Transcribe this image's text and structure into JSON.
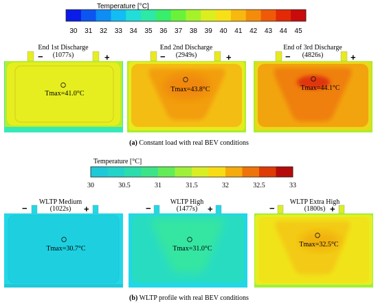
{
  "top": {
    "colorbar": {
      "title": "Temperature [°C]",
      "ticks": [
        "30",
        "31",
        "32",
        "33",
        "34",
        "35",
        "36",
        "37",
        "38",
        "39",
        "40",
        "41",
        "42",
        "43",
        "44",
        "45"
      ],
      "colors": [
        "#0b1be8",
        "#0c55f0",
        "#0e8df2",
        "#13bdf3",
        "#22ddd8",
        "#2ee8a6",
        "#39ee6a",
        "#6af23a",
        "#a5f22b",
        "#dcee20",
        "#f7e017",
        "#f7b80f",
        "#f48c0b",
        "#ef5a08",
        "#e32a06",
        "#c80b0b"
      ]
    },
    "panels": [
      {
        "title_line1": "End 1st Discharge",
        "title_line2": "(1077s)",
        "tmax": "Tmax=41.0°C",
        "minus": "−",
        "plus": "+"
      },
      {
        "title_line1": "End 2nd Discharge",
        "title_line2": "(2949s)",
        "tmax": "Tmax=43.8°C",
        "minus": "−",
        "plus": "+"
      },
      {
        "title_line1": "End of 3rd Discharge",
        "title_line2": "(4826s)",
        "tmax": "Tmax=44.1°C",
        "minus": "−",
        "plus": "+"
      }
    ],
    "caption_label": "(a)",
    "caption_text": " Constant load with real BEV conditions"
  },
  "bottom": {
    "colorbar": {
      "title": "Temperature [°C]",
      "ticks": [
        "30",
        "30.5",
        "31",
        "31.5",
        "32",
        "32.5",
        "33"
      ],
      "colors": [
        "#1fc9d8",
        "#23d2c9",
        "#2cdcac",
        "#3be488",
        "#63ec57",
        "#9ff03b",
        "#d9ee25",
        "#f8dc16",
        "#f5ab0d",
        "#ee7409",
        "#dd3a06",
        "#b60a0a"
      ]
    },
    "panels": [
      {
        "title_line1": "WLTP Medium",
        "title_line2": "(1022s)",
        "tmax": "Tmax=30.7°C",
        "minus": "−",
        "plus": "+"
      },
      {
        "title_line1": "WLTP High",
        "title_line2": "(1477s)",
        "tmax": "Tmax=31.0°C",
        "minus": "−",
        "plus": "+"
      },
      {
        "title_line1": "WLTP Extra High",
        "title_line2": "(1800s)",
        "tmax": "Tmax=32.5°C",
        "minus": "−",
        "plus": "+"
      }
    ],
    "caption_label": "(b)",
    "caption_text": " WLTP profile with real BEV conditions"
  },
  "field_colors": {
    "p1_bg": "#e6ee1f",
    "p1_rim": "#37e8b8",
    "p1_edge": "#b4ee2c",
    "p2_bg": "#f4bd14",
    "p2_mid": "#f29e10",
    "p2_hot": "#f0880c",
    "p3_bg": "#f2a40f",
    "p3_mid": "#ef800b",
    "p3_hot": "#e0360a",
    "q1_bg": "#22d7e6",
    "q1_mid": "#1ed0df",
    "q2_bg": "#28dcc2",
    "q2_mid": "#36e5a2",
    "q3_bg": "#f1e31a",
    "q3_mid": "#f3cb14",
    "q3_hot": "#f1b10f"
  }
}
